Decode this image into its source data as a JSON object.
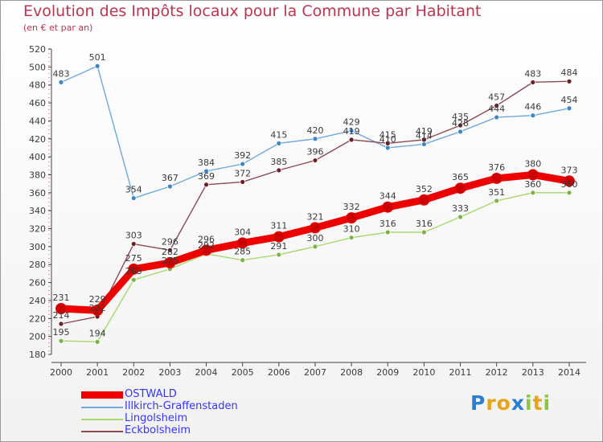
{
  "title": "Evolution des Impôts locaux pour la Commune par Habitant",
  "subtitle": "(en € et par an)",
  "brand": {
    "text": "Proxiti",
    "letters": [
      {
        "ch": "P",
        "color": "#2a7fd4"
      },
      {
        "ch": "r",
        "color": "#e8a317"
      },
      {
        "ch": "o",
        "color": "#e8a317"
      },
      {
        "ch": "x",
        "color": "#2a7fd4"
      },
      {
        "ch": "i",
        "color": "#8cc63f"
      },
      {
        "ch": "t",
        "color": "#e8a317"
      },
      {
        "ch": "i",
        "color": "#8cc63f"
      }
    ]
  },
  "chart_data": {
    "type": "line",
    "x": [
      "2000",
      "2001",
      "2002",
      "2003",
      "2004",
      "2005",
      "2006",
      "2007",
      "2008",
      "2009",
      "2010",
      "2011",
      "2012",
      "2013",
      "2014"
    ],
    "ylim": [
      180,
      520
    ],
    "yticks": [
      180,
      200,
      220,
      240,
      260,
      280,
      300,
      320,
      340,
      360,
      380,
      400,
      420,
      440,
      460,
      480,
      500,
      520
    ],
    "grid": false,
    "legend_position": "bottom-left",
    "series": [
      {
        "name": "OSTWALD",
        "color": "#ee0000",
        "point_color": "#cc0000",
        "values": [
          231,
          229,
          275,
          282,
          296,
          304,
          311,
          321,
          332,
          344,
          352,
          365,
          376,
          380,
          373
        ],
        "labels": [
          "231",
          "229",
          "275",
          "282",
          "296",
          "304",
          "311",
          "321",
          "332",
          "344",
          "352",
          "365",
          "376",
          "380",
          "373"
        ]
      },
      {
        "name": "Illkirch-Graffenstaden",
        "color": "#6fa8dc",
        "point_color": "#3d85c6",
        "values": [
          483,
          501,
          354,
          367,
          384,
          392,
          415,
          420,
          429,
          410,
          414,
          428,
          444,
          446,
          454
        ],
        "labels": [
          "483",
          "501",
          "354",
          "367",
          "384",
          "392",
          "415",
          "420",
          "429",
          "410",
          "414",
          "428",
          "444",
          "446",
          "454"
        ]
      },
      {
        "name": "Lingolsheim",
        "color": "#a6d96a",
        "point_color": "#7cb342",
        "values": [
          195,
          194,
          263,
          275,
          292,
          285,
          291,
          300,
          310,
          316,
          316,
          333,
          351,
          360,
          360
        ],
        "labels": [
          "195",
          "194",
          "263",
          "275",
          "292",
          "285",
          "291",
          "300",
          "310",
          "316",
          "316",
          "333",
          "351",
          "360",
          "360"
        ]
      },
      {
        "name": "Eckbolsheim",
        "color": "#8c4a52",
        "point_color": "#6d1f26",
        "values": [
          214,
          222,
          303,
          296,
          369,
          372,
          385,
          396,
          419,
          415,
          419,
          435,
          457,
          483,
          484
        ],
        "labels": [
          "214",
          "222",
          "303",
          "296",
          "369",
          "372",
          "385",
          "396",
          "419",
          "415",
          "419",
          "435",
          "457",
          "483",
          "484"
        ]
      }
    ]
  }
}
